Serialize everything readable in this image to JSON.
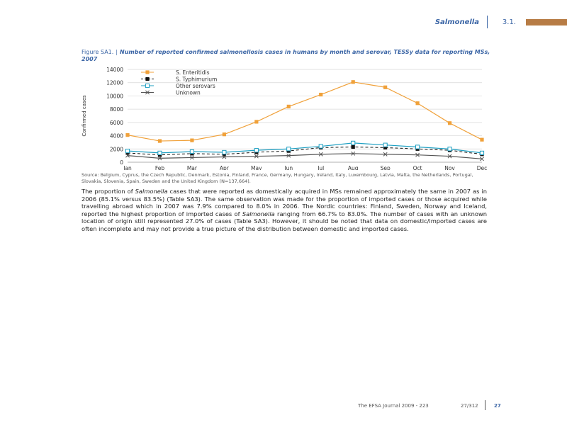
{
  "header": {
    "title": "Salmonella",
    "section": "3.1."
  },
  "figure": {
    "number": "Figure SA1.",
    "title": "Number of reported confirmed salmonellosis cases in humans by month and serovar, TESSy data for reporting MSs, 2007",
    "source": "Source: Belgium, Cyprus, the Czech Republic, Denmark, Estonia, Finland, France, Germany, Hungary, Ireland, Italy, Luxembourg, Latvia, Malta, the Netherlands, Portugal, Slovakia, Slovenia, Spain, Sweden and the United Kingdom (N=137,664)."
  },
  "chart_data": {
    "type": "line",
    "title": "",
    "xlabel": "",
    "ylabel": "Confirmed cases",
    "categories": [
      "Jan",
      "Feb",
      "Mar",
      "Apr",
      "May",
      "Jun",
      "Jul",
      "Aug",
      "Sep",
      "Oct",
      "Nov",
      "Dec"
    ],
    "yticks": [
      "0",
      "2000",
      "4000",
      "6000",
      "8000",
      "10000",
      "12000",
      "14000"
    ],
    "ylim": [
      0,
      14000
    ],
    "grid": true,
    "legend_position": "top-left",
    "series": [
      {
        "name": "S. Enteritidis",
        "marker": "square",
        "color": "#f0a13a",
        "line": "solid",
        "values": [
          4100,
          3200,
          3300,
          4200,
          6100,
          8400,
          10200,
          12100,
          11300,
          8900,
          5900,
          3400
        ]
      },
      {
        "name": "S. Typhimurium",
        "marker": "filled-square",
        "color": "#111111",
        "line": "dashed",
        "values": [
          1400,
          1100,
          1300,
          1200,
          1500,
          1700,
          2200,
          2300,
          2200,
          2000,
          1800,
          1200
        ]
      },
      {
        "name": "Other serovars",
        "marker": "open-square",
        "color": "#1d9fc2",
        "line": "solid",
        "values": [
          1700,
          1400,
          1600,
          1500,
          1800,
          2000,
          2400,
          2900,
          2600,
          2300,
          2000,
          1400
        ]
      },
      {
        "name": "Unknown",
        "marker": "cross",
        "color": "#555555",
        "line": "solid",
        "values": [
          1000,
          600,
          700,
          800,
          900,
          1000,
          1200,
          1300,
          1200,
          1100,
          900,
          500
        ]
      }
    ]
  },
  "body": {
    "p1_a": "The proportion of ",
    "p1_italic1": "Salmonella",
    "p1_b": " cases that were reported as domestically acquired in MSs remained approximately the same in 2007 as in 2006 (85.1% versus 83.5%) (Table SA3). The same observation was made for the proportion of imported cases or those acquired while travelling abroad which in 2007 was 7.9% compared to 8.0% in 2006. The Nordic countries: Finland, Sweden, Norway and Iceland, reported the highest proportion of imported cases of ",
    "p1_italic2": "Salmonella",
    "p1_c": " ranging from 66.7% to 83.0%. The number of cases with an unknown location of origin still represented 27.0% of cases (Table SA3). However, it should be noted that data on domestic/imported cases are often incomplete and may not provide a true picture of the distribution between domestic and imported cases."
  },
  "footer": {
    "journal": "The EFSA Journal 2009 - 223",
    "page_range": "27/312",
    "page": "27"
  }
}
